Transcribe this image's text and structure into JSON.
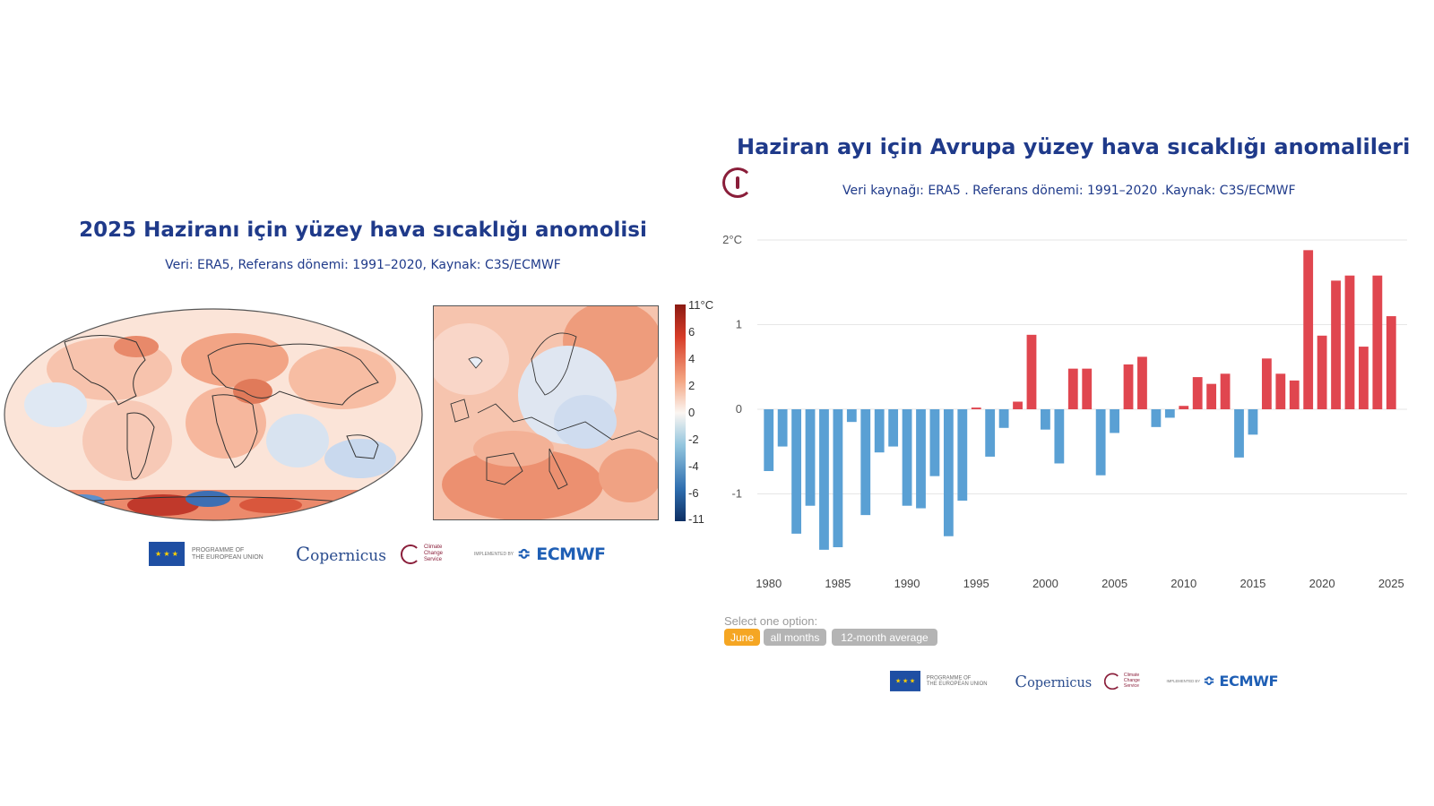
{
  "left": {
    "title": "2025 Haziranı için yüzey hava sıcaklığı anomolisi",
    "subtitle": "Veri: ERA5, Referans dönemi: 1991–2020, Kaynak: C3S/ECMWF",
    "colorbar_labels": [
      "11°C",
      "6",
      "4",
      "2",
      "0",
      "-2",
      "-4",
      "-6",
      "-11"
    ],
    "logos": {
      "eu_text": "PROGRAMME OF\nTHE EUROPEAN UNION",
      "copernicus": "opernicus",
      "c3s": "Climate Change Service",
      "implemented": "IMPLEMENTED BY",
      "ecmwf": "ECMWF"
    }
  },
  "right": {
    "title": "Haziran ayı için Avrupa yüzey hava sıcaklığı anomalileri",
    "subtitle": "Veri kaynağı: ERA5 . Referans dönemi: 1991–2020 .Kaynak: C3S/ECMWF",
    "options_label": "Select one option:",
    "options": [
      "June",
      "all months",
      "12-month average"
    ],
    "logos": {
      "eu_text": "PROGRAMME OF\nTHE EUROPEAN UNION",
      "copernicus": "opernicus",
      "c3s": "Climate Change Service",
      "implemented": "IMPLEMENTED BY",
      "ecmwf": "ECMWF"
    }
  },
  "colors": {
    "positive": "#e0464f",
    "negative": "#5aa0d4",
    "title": "#1f3a8a",
    "option_active": "#f5a623",
    "option_inactive": "#b4b4b4"
  },
  "chart_data": {
    "type": "bar",
    "title": "Haziran ayı için Avrupa yüzey hava sıcaklığı anomalileri",
    "x_tick_labels": [
      "1980",
      "1985",
      "1990",
      "1995",
      "2000",
      "2005",
      "2010",
      "2015",
      "2020",
      "2025"
    ],
    "y_tick_labels": [
      "2°C",
      "1",
      "0",
      "-1"
    ],
    "ylim": [
      -1.7,
      2.0
    ],
    "grid": true,
    "x": [
      1980,
      1981,
      1982,
      1983,
      1984,
      1985,
      1986,
      1987,
      1988,
      1989,
      1990,
      1991,
      1992,
      1993,
      1994,
      1995,
      1996,
      1997,
      1998,
      1999,
      2000,
      2001,
      2002,
      2003,
      2004,
      2005,
      2006,
      2007,
      2008,
      2009,
      2010,
      2011,
      2012,
      2013,
      2014,
      2015,
      2016,
      2017,
      2018,
      2019,
      2020,
      2021,
      2022,
      2023,
      2024,
      2025
    ],
    "values": [
      -0.73,
      -0.44,
      -1.47,
      -1.14,
      -1.66,
      -1.63,
      -0.15,
      -1.25,
      -0.51,
      -0.44,
      -1.14,
      -1.17,
      -0.79,
      -1.5,
      -1.08,
      0.02,
      -0.56,
      -0.22,
      0.09,
      0.88,
      -0.24,
      -0.64,
      0.48,
      0.48,
      -0.78,
      -0.28,
      0.53,
      0.62,
      -0.21,
      -0.1,
      0.04,
      0.38,
      0.3,
      0.42,
      -0.57,
      -0.3,
      0.6,
      0.42,
      0.34,
      1.88,
      0.87,
      1.52,
      1.58,
      0.74,
      1.58,
      1.1
    ]
  }
}
